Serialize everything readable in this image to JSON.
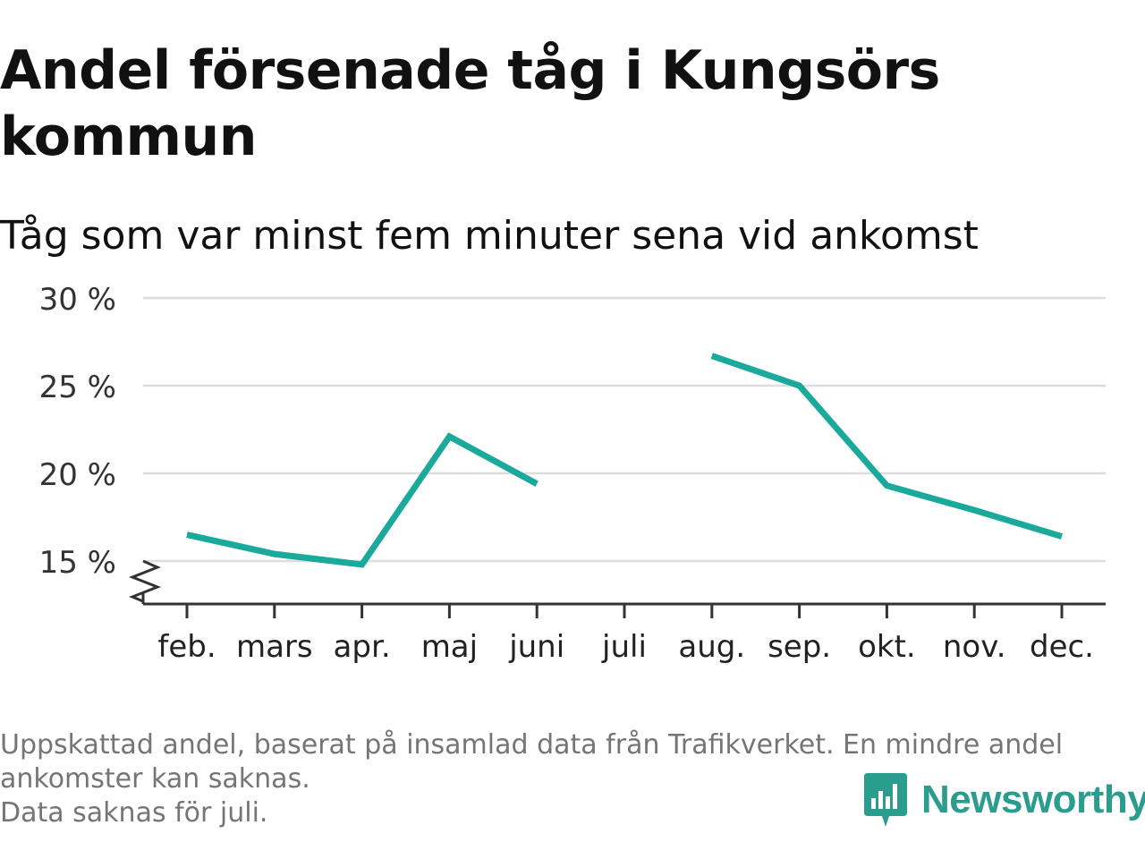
{
  "title": "Andel försenade tåg i Kungsörs kommun",
  "subtitle": "Tåg som var minst fem minuter sena vid ankomst",
  "footnote": {
    "line1": "Uppskattad andel, baserat på insamlad data från Trafikverket. En mindre andel",
    "line2": "ankomster kan saknas.",
    "line3": "Data saknas för juli."
  },
  "brand": {
    "name": "Newsworthy",
    "logo_icon": "newsworthy-bar-chart-badge-icon",
    "color": "#2a9d8f"
  },
  "chart_data": {
    "type": "line",
    "title": "Andel försenade tåg i Kungsörs kommun",
    "subtitle": "Tåg som var minst fem minuter sena vid ankomst",
    "categories": [
      "feb.",
      "mars",
      "apr.",
      "maj",
      "juni",
      "juli",
      "aug.",
      "sep.",
      "okt.",
      "nov.",
      "dec."
    ],
    "series": [
      {
        "values": [
          16.5,
          15.4,
          14.8,
          22.1,
          19.4,
          null,
          26.7,
          25.0,
          19.3,
          17.9,
          16.4
        ],
        "color": "#1aa99b"
      }
    ],
    "yticks": [
      15,
      20,
      25,
      30
    ],
    "ytick_labels": [
      "15 %",
      "20 %",
      "25 %",
      "30 %"
    ],
    "ylim": [
      12.5,
      30
    ],
    "y_axis_break": true,
    "grid": "horizontal",
    "legend": "none",
    "colors": {
      "line": "#1aa99b",
      "grid": "#dddddd",
      "axis": "#333333"
    }
  }
}
